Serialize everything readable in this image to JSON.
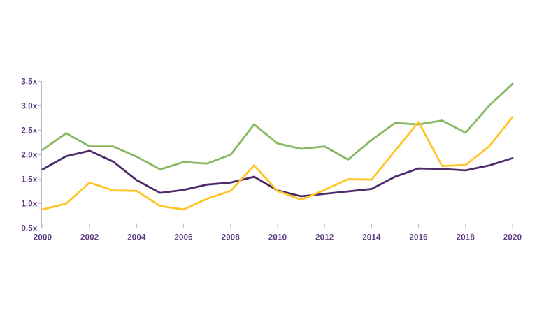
{
  "chart_data": {
    "type": "line",
    "title": "",
    "xlabel": "",
    "ylabel": "",
    "grid": false,
    "legend": "none",
    "xlim": [
      2000,
      2020
    ],
    "ylim": [
      0.5,
      3.5
    ],
    "x": [
      2000,
      2001,
      2002,
      2003,
      2004,
      2005,
      2006,
      2007,
      2008,
      2009,
      2010,
      2011,
      2012,
      2013,
      2014,
      2015,
      2016,
      2017,
      2018,
      2019,
      2020
    ],
    "series": [
      {
        "name": "green-series",
        "color": "#87b860",
        "values": [
          2.1,
          2.44,
          2.17,
          2.17,
          1.96,
          1.7,
          1.85,
          1.82,
          2.0,
          2.62,
          2.23,
          2.12,
          2.17,
          1.9,
          2.3,
          2.65,
          2.62,
          2.7,
          2.45,
          3.0,
          3.45
        ]
      },
      {
        "name": "purple-series",
        "color": "#4e2a6a",
        "values": [
          1.7,
          1.97,
          2.08,
          1.86,
          1.48,
          1.22,
          1.28,
          1.39,
          1.43,
          1.55,
          1.27,
          1.15,
          1.2,
          1.25,
          1.3,
          1.55,
          1.72,
          1.71,
          1.68,
          1.78,
          1.93
        ]
      },
      {
        "name": "yellow-series",
        "color": "#ffc425",
        "values": [
          0.88,
          1.0,
          1.43,
          1.27,
          1.26,
          0.95,
          0.88,
          1.1,
          1.26,
          1.78,
          1.26,
          1.08,
          1.28,
          1.5,
          1.49,
          2.08,
          2.67,
          1.77,
          1.79,
          2.17,
          2.77
        ]
      }
    ],
    "ytick_values": [
      0.5,
      1.0,
      1.5,
      2.0,
      2.5,
      3.0,
      3.5
    ],
    "ytick_labels": [
      "0.5x",
      "1.0x",
      "1.5x",
      "2.0x",
      "2.5x",
      "3.0x",
      "3.5x"
    ],
    "xtick_values": [
      2000,
      2002,
      2004,
      2006,
      2008,
      2010,
      2012,
      2014,
      2016,
      2018,
      2020
    ],
    "xtick_labels": [
      "2000",
      "2002",
      "2004",
      "2006",
      "2008",
      "2010",
      "2012",
      "2014",
      "2016",
      "2018",
      "2020"
    ],
    "axis_color": "#bcb6c4",
    "tick_color": "#bcb6c4",
    "label_color": "#5b3a80",
    "background_color": "#ffffff"
  }
}
